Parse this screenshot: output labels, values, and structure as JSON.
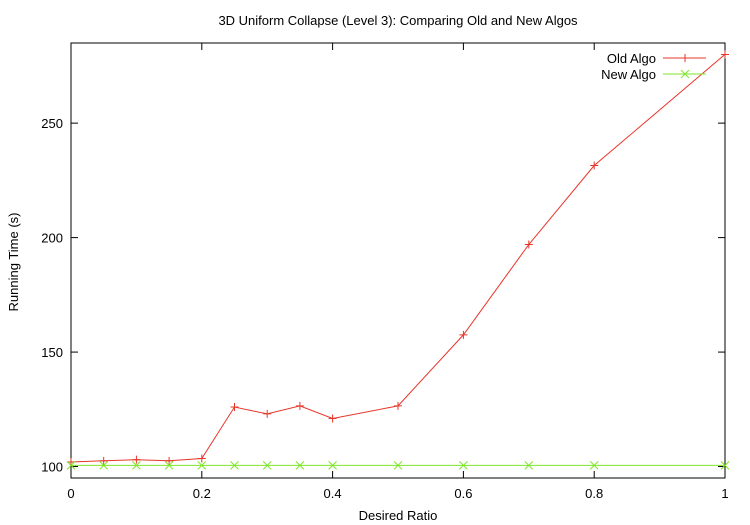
{
  "chart_data": {
    "type": "line",
    "title": "3D Uniform Collapse (Level 3): Comparing Old and New Algos",
    "xlabel": "Desired Ratio",
    "ylabel": "Running Time (s)",
    "xlim": [
      0,
      1
    ],
    "ylim": [
      95,
      285
    ],
    "xticks": [
      0,
      0.2,
      0.4,
      0.6,
      0.8,
      1
    ],
    "xtick_labels": [
      "0",
      "0.2",
      "0.4",
      "0.6",
      "0.8",
      "1"
    ],
    "yticks": [
      100,
      150,
      200,
      250
    ],
    "ytick_labels": [
      "100",
      "150",
      "200",
      "250"
    ],
    "grid": false,
    "legend_position": "top-right",
    "series": [
      {
        "name": "Old Algo",
        "color": "#e8352a",
        "marker": "plus",
        "points": [
          [
            0,
            102
          ],
          [
            0.05,
            102.5
          ],
          [
            0.1,
            103
          ],
          [
            0.15,
            102.5
          ],
          [
            0.2,
            103.5
          ],
          [
            0.25,
            126
          ],
          [
            0.3,
            123
          ],
          [
            0.35,
            126.5
          ],
          [
            0.4,
            121
          ],
          [
            0.5,
            126.5
          ],
          [
            0.6,
            157.5
          ],
          [
            0.7,
            197
          ],
          [
            0.8,
            231.5
          ],
          [
            1,
            280
          ]
        ]
      },
      {
        "name": "New Algo",
        "color": "#7ee62a",
        "marker": "cross",
        "points": [
          [
            0,
            100.5
          ],
          [
            0.05,
            100.5
          ],
          [
            0.1,
            100.5
          ],
          [
            0.15,
            100.5
          ],
          [
            0.2,
            100.5
          ],
          [
            0.25,
            100.5
          ],
          [
            0.3,
            100.5
          ],
          [
            0.35,
            100.5
          ],
          [
            0.4,
            100.5
          ],
          [
            0.5,
            100.5
          ],
          [
            0.6,
            100.5
          ],
          [
            0.7,
            100.5
          ],
          [
            0.8,
            100.5
          ],
          [
            1,
            100.5
          ]
        ]
      }
    ]
  }
}
